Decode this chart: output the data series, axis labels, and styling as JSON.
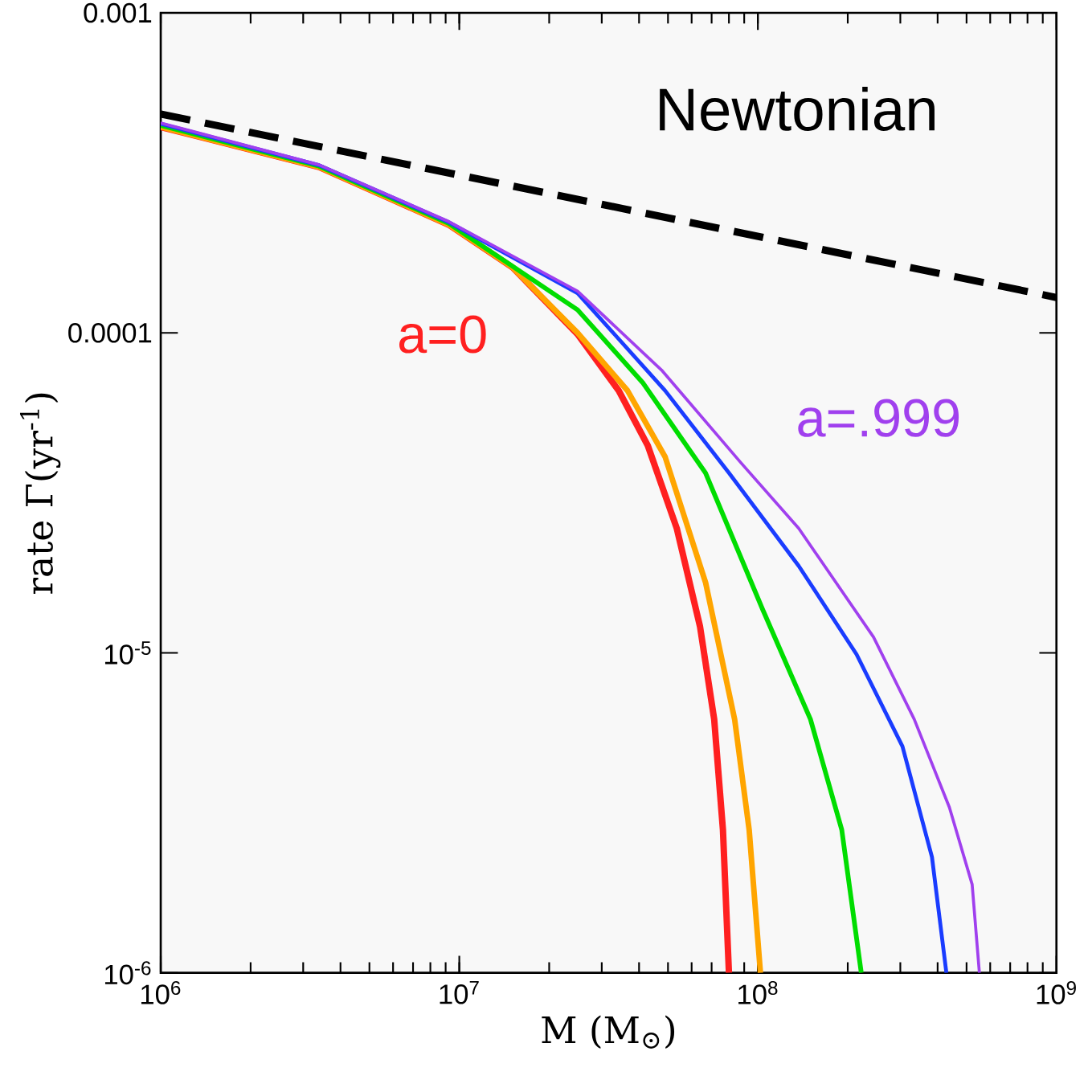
{
  "chart_data": {
    "type": "line",
    "log": "xy",
    "xlabel": "M (M$_{⊙}$)",
    "ylabel": "rate Γ(yr$^{-1}$)",
    "xlim": [
      1000000,
      1000000000
    ],
    "ylim": [
      1e-06,
      0.001
    ],
    "xticks": [
      {
        "value": 1000000,
        "label": "10$^{6}$"
      },
      {
        "value": 10000000,
        "label": "10$^{7}$"
      },
      {
        "value": 100000000,
        "label": "10$^{8}$"
      },
      {
        "value": 1000000000,
        "label": "10$^{9}$"
      }
    ],
    "yticks": [
      0.001,
      0.0001,
      {
        "value": 1e-05,
        "label": "10$^{-5}$"
      },
      {
        "value": 1e-06,
        "label": "10$^{-6}$"
      }
    ],
    "annotations": [
      "Newtonian"
    ],
    "series": [
      {
        "type": "line",
        "line_style": "dashed",
        "color": "#000000",
        "x": [
          1000000,
          1000000000
        ],
        "values": [
          0.000483,
          0.000129
        ]
      },
      {
        "name": "a=0",
        "color": "#ff2020",
        "x": [
          1000000,
          3390000,
          9200000,
          15100000,
          24900000,
          34200000,
          42800000,
          53500000,
          64000000,
          71400000,
          76400000,
          80000000
        ],
        "values": [
          0.00044,
          0.00033,
          0.000218,
          0.00016,
          9.9e-05,
          6.6e-05,
          4.44e-05,
          2.45e-05,
          1.21e-05,
          6.2e-06,
          2.8e-06,
          1e-06
        ]
      },
      {
        "color": "#ffa500",
        "x": [
          1000000,
          3390000,
          9200000,
          15100000,
          24900000,
          36600000,
          48900000,
          66800000,
          83600000,
          93500000,
          102000000
        ],
        "values": [
          0.00044,
          0.00033,
          0.000218,
          0.00016,
          0.0001,
          6.6e-05,
          4.1e-05,
          1.66e-05,
          6.2e-06,
          2.8e-06,
          1e-06
        ]
      },
      {
        "color": "#00dd00",
        "x": [
          1000000,
          3390000,
          9200000,
          24900000,
          41100000,
          66800000,
          104000000,
          150000000,
          191000000,
          222000000
        ],
        "values": [
          0.000445,
          0.000332,
          0.00022,
          0.000118,
          7e-05,
          3.65e-05,
          1.36e-05,
          6.2e-06,
          2.8e-06,
          1e-06
        ]
      },
      {
        "color": "#1a3cff",
        "x": [
          1000000,
          3390000,
          9200000,
          24900000,
          48900000,
          80000000,
          137000000,
          214000000,
          305000000,
          383000000,
          428000000
        ],
        "values": [
          0.00045,
          0.000334,
          0.000222,
          0.000133,
          6.6e-05,
          3.65e-05,
          1.87e-05,
          9.9e-06,
          5.1e-06,
          2.3e-06,
          1e-06
        ]
      },
      {
        "name": "a=.999",
        "color": "#a040ee",
        "x": [
          1000000,
          3390000,
          9200000,
          24900000,
          47900000,
          87500000,
          137000000,
          244000000,
          334000000,
          438000000,
          522000000,
          552000000
        ],
        "values": [
          0.000453,
          0.000335,
          0.000223,
          0.000135,
          7.6e-05,
          3.94e-05,
          2.45e-05,
          1.12e-05,
          6.2e-06,
          3.29e-06,
          1.89e-06,
          1e-06
        ]
      }
    ]
  }
}
